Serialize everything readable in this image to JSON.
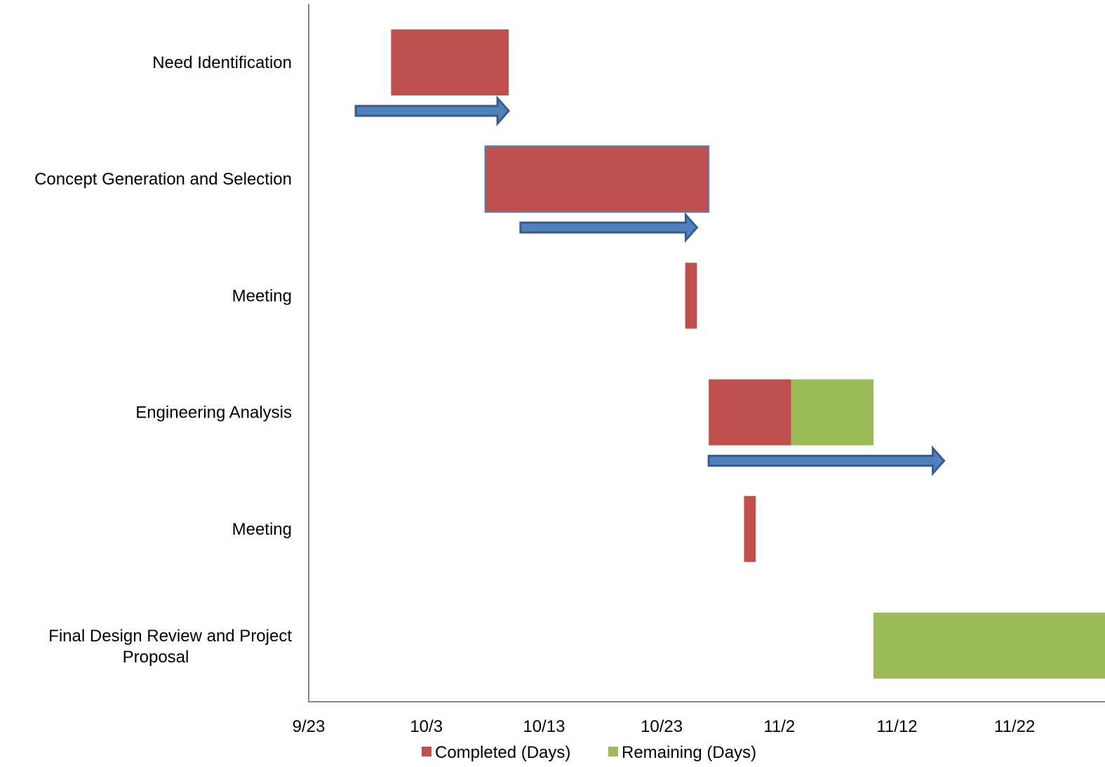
{
  "chart_data": {
    "type": "bar",
    "orientation": "horizontal",
    "stacked": true,
    "categories": [
      "Need Identification",
      "Concept Generation and Selection",
      "Meeting",
      "Engineering Analysis",
      "Meeting",
      "Final Design Review and  Project Proposal"
    ],
    "start": [
      "2014-09-30",
      "2014-10-08",
      "2014-10-25",
      "2014-10-27",
      "2014-10-30",
      "2014-11-10"
    ],
    "series": [
      {
        "name": "Completed (Days)",
        "values": [
          10,
          19,
          1,
          7,
          1,
          0
        ],
        "color": "#c0504d"
      },
      {
        "name": "Remaining (Days)",
        "values": [
          0,
          0,
          0,
          7,
          0,
          20
        ],
        "color": "#9bbb59"
      }
    ],
    "schedule_arrows": [
      {
        "start": "2014-09-27",
        "end": "2014-10-10"
      },
      {
        "start": "2014-10-11",
        "end": "2014-10-26"
      },
      {
        "start": "2014-10-27",
        "end": "2014-11-16"
      }
    ],
    "arrow_color": "#4f81bd",
    "x_tick_labels": [
      "9/23",
      "10/3",
      "10/13",
      "10/23",
      "11/2",
      "11/12",
      "11/22"
    ],
    "xlim": [
      "2014-09-23",
      "2014-11-30"
    ],
    "title": "",
    "xlabel": "",
    "ylabel": "",
    "grid": false,
    "legend_position": "bottom"
  }
}
